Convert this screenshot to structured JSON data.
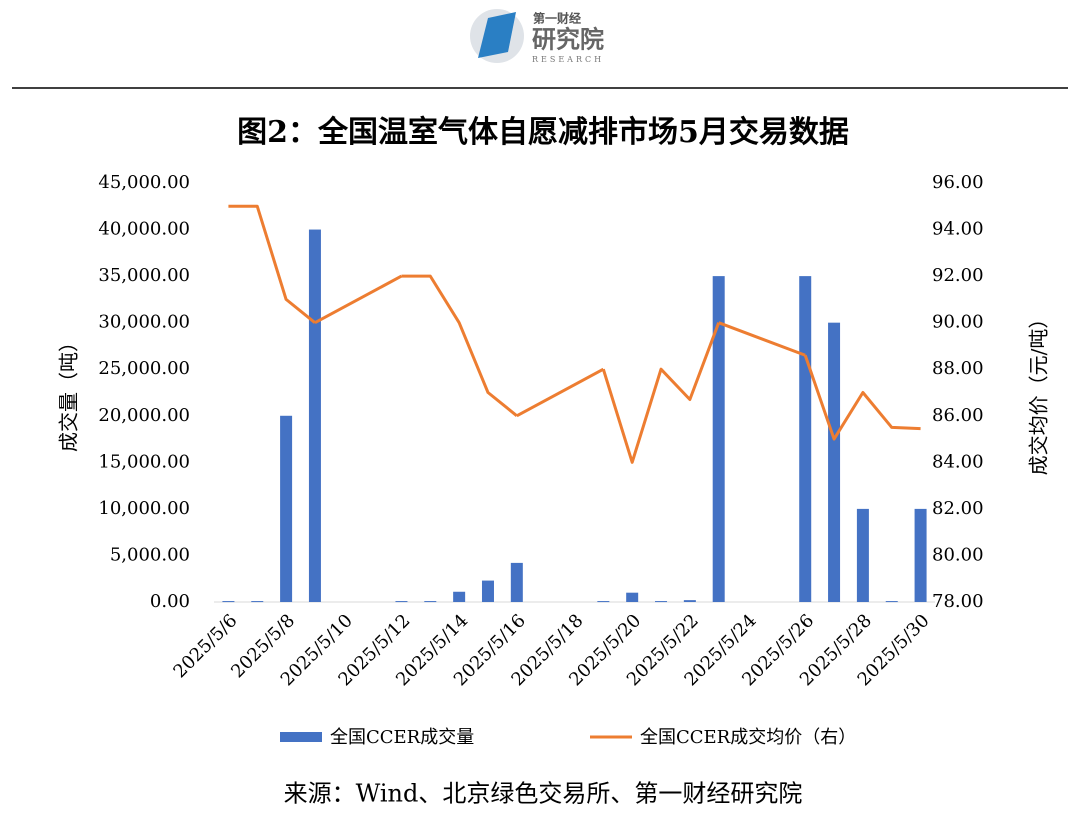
{
  "logo": {
    "top": "第一财经",
    "main": "研究院",
    "sub": "RESEARCH"
  },
  "chart_data": {
    "type": "bar_line",
    "title": "图2：全国温室气体自愿减排市场5月交易数据",
    "y_label": "成交量（吨）",
    "y2_label": "成交均价（元/吨）",
    "source": "来源：Wind、北京绿色交易所、第一财经研究院",
    "categories": [
      "2025/5/6",
      null,
      "2025/5/8",
      null,
      "2025/5/10",
      null,
      "2025/5/12",
      null,
      "2025/5/14",
      null,
      "2025/5/16",
      null,
      "2025/5/18",
      null,
      "2025/5/20",
      null,
      "2025/5/22",
      null,
      "2025/5/24",
      null,
      "2025/5/26",
      null,
      "2025/5/28",
      null,
      "2025/5/30"
    ],
    "series": [
      {
        "name": "全国CCER成交量",
        "color": "#4472c4",
        "kind": "bar",
        "values": [
          100,
          100,
          20000,
          40000,
          null,
          null,
          100,
          100,
          1100,
          2300,
          4200,
          null,
          null,
          100,
          1000,
          100,
          200,
          35000,
          null,
          null,
          35000,
          30000,
          10000,
          100,
          10000
        ]
      },
      {
        "name": "全国CCER成交均价（右）",
        "color": "#ed7d31",
        "kind": "line",
        "axis": "y2",
        "values": [
          95,
          95,
          91,
          90,
          null,
          null,
          92,
          92,
          90,
          87,
          86,
          null,
          null,
          88,
          84,
          88,
          86.7,
          90,
          null,
          null,
          88.6,
          85,
          87,
          85.5,
          85.45
        ]
      }
    ],
    "ylim": [
      0,
      45000
    ],
    "yticks": [
      {
        "value": 0,
        "label": "0.00"
      },
      {
        "value": 5000,
        "label": "5,000.00"
      },
      {
        "value": 10000,
        "label": "10,000.00"
      },
      {
        "value": 15000,
        "label": "15,000.00"
      },
      {
        "value": 20000,
        "label": "20,000.00"
      },
      {
        "value": 25000,
        "label": "25,000.00"
      },
      {
        "value": 30000,
        "label": "30,000.00"
      },
      {
        "value": 35000,
        "label": "35,000.00"
      },
      {
        "value": 40000,
        "label": "40,000.00"
      },
      {
        "value": 45000,
        "label": "45,000.00"
      }
    ],
    "y2lim": [
      78,
      96
    ],
    "y2ticks": [
      {
        "value": 78,
        "label": "78.00"
      },
      {
        "value": 80,
        "label": "80.00"
      },
      {
        "value": 82,
        "label": "82.00"
      },
      {
        "value": 84,
        "label": "84.00"
      },
      {
        "value": 86,
        "label": "86.00"
      },
      {
        "value": 88,
        "label": "88.00"
      },
      {
        "value": 90,
        "label": "90.00"
      },
      {
        "value": 92,
        "label": "92.00"
      },
      {
        "value": 94,
        "label": "94.00"
      },
      {
        "value": 96,
        "label": "96.00"
      }
    ],
    "legend": "bottom"
  }
}
